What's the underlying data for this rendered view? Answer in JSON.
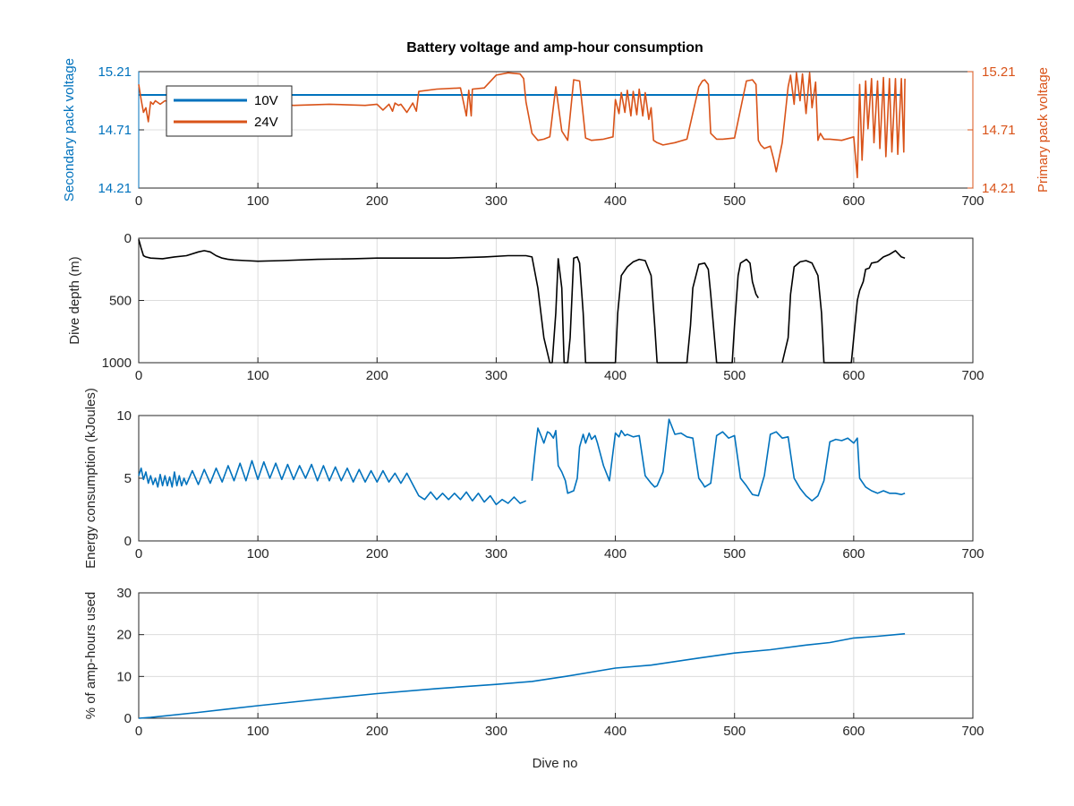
{
  "chart_data": [
    {
      "type": "line",
      "title": "Battery voltage and amp-hour consumption",
      "xlabel": "",
      "ylabel": "Secondary pack voltage",
      "ylabel_right": "Primary pack voltage",
      "xlim": [
        0,
        700
      ],
      "ylim": [
        14.21,
        15.21
      ],
      "xticks": [
        "0",
        "100",
        "200",
        "300",
        "400",
        "500",
        "600",
        "700"
      ],
      "yticks": [
        "14.21",
        "14.71",
        "15.21"
      ],
      "yticks_right": [
        "14.21",
        "14.71",
        "15.21"
      ],
      "grid": true,
      "legend": "top-left",
      "series": [
        {
          "name": "10V",
          "axis": "left",
          "color": "#0072BD",
          "x": [
            0,
            640
          ],
          "y": [
            15.01,
            15.01
          ]
        },
        {
          "name": "24V",
          "axis": "right",
          "color": "#D95319",
          "x": [
            0,
            2,
            4,
            6,
            8,
            10,
            12,
            14,
            18,
            22,
            30,
            50,
            80,
            110,
            130,
            160,
            190,
            200,
            205,
            210,
            213,
            215,
            218,
            220,
            225,
            230,
            233,
            235,
            250,
            270,
            275,
            277,
            279,
            280,
            290,
            300,
            310,
            320,
            323,
            325,
            330,
            335,
            340,
            345,
            350,
            355,
            360,
            365,
            370,
            375,
            380,
            390,
            398,
            400,
            403,
            405,
            408,
            410,
            413,
            415,
            418,
            420,
            423,
            425,
            428,
            430,
            432,
            435,
            440,
            450,
            460,
            470,
            473,
            475,
            478,
            480,
            485,
            490,
            500,
            510,
            515,
            518,
            520,
            522,
            525,
            530,
            533,
            535,
            540,
            545,
            547,
            550,
            552,
            555,
            557,
            560,
            563,
            565,
            568,
            570,
            572,
            575,
            580,
            590,
            600,
            603,
            605,
            607,
            610,
            612,
            615,
            617,
            620,
            622,
            625,
            627,
            630,
            632,
            635,
            637,
            640,
            642,
            643
          ],
          "y": [
            15.1,
            14.97,
            14.86,
            14.9,
            14.78,
            14.95,
            14.93,
            14.96,
            14.93,
            14.96,
            14.94,
            14.95,
            14.93,
            14.94,
            14.92,
            14.93,
            14.92,
            14.93,
            14.88,
            14.93,
            14.87,
            14.94,
            14.92,
            14.93,
            14.86,
            14.94,
            14.87,
            15.04,
            15.06,
            15.07,
            14.83,
            15.05,
            14.83,
            15.06,
            15.07,
            15.18,
            15.2,
            15.19,
            15.15,
            14.95,
            14.68,
            14.62,
            14.63,
            14.65,
            15.08,
            14.7,
            14.62,
            15.14,
            15.13,
            14.64,
            14.62,
            14.63,
            14.65,
            14.97,
            14.85,
            15.03,
            14.86,
            15.05,
            14.83,
            15.04,
            14.84,
            15.06,
            14.83,
            15.03,
            14.8,
            14.9,
            14.62,
            14.6,
            14.58,
            14.6,
            14.63,
            15.08,
            15.13,
            15.14,
            15.1,
            14.68,
            14.63,
            14.63,
            14.64,
            15.13,
            15.14,
            15.1,
            14.62,
            14.58,
            14.55,
            14.57,
            14.45,
            14.35,
            14.6,
            15.08,
            15.18,
            14.93,
            15.2,
            14.96,
            15.19,
            14.85,
            15.2,
            14.9,
            15.12,
            14.62,
            14.68,
            14.63,
            14.63,
            14.62,
            14.65,
            14.3,
            15.1,
            14.45,
            15.13,
            14.72,
            15.15,
            14.6,
            15.13,
            14.55,
            15.16,
            14.48,
            15.15,
            14.52,
            15.15,
            14.5,
            15.15,
            14.52,
            15.15
          ]
        }
      ]
    },
    {
      "type": "line",
      "title": "",
      "xlabel": "",
      "ylabel": "Dive depth (m)",
      "xlim": [
        0,
        700
      ],
      "ylim": [
        1000,
        0
      ],
      "y_reversed": true,
      "xticks": [
        "0",
        "100",
        "200",
        "300",
        "400",
        "500",
        "600",
        "700"
      ],
      "yticks": [
        "0",
        "500",
        "1000"
      ],
      "grid": true,
      "series": [
        {
          "color": "#000000",
          "x": [
            0,
            2,
            4,
            6,
            10,
            20,
            30,
            40,
            50,
            55,
            60,
            65,
            70,
            75,
            80,
            90,
            100,
            120,
            150,
            180,
            200,
            230,
            260,
            290,
            310,
            320,
            325,
            330,
            335,
            340,
            345,
            347,
            350,
            352,
            355,
            357,
            360,
            362,
            365,
            368,
            370,
            373,
            375,
            380,
            390,
            400,
            402,
            405,
            410,
            415,
            420,
            425,
            430,
            433,
            435,
            440,
            450,
            460,
            463,
            465,
            470,
            475,
            478,
            480,
            485,
            490,
            498,
            500,
            503,
            505,
            510,
            513,
            515,
            518,
            520,
            null,
            540,
            545,
            547,
            550,
            555,
            560,
            565,
            570,
            573,
            575,
            580,
            590,
            598,
            600,
            603,
            605,
            608,
            610,
            613,
            615,
            620,
            625,
            630,
            635,
            640,
            643
          ],
          "y": [
            10,
            80,
            140,
            150,
            160,
            165,
            150,
            140,
            110,
            100,
            110,
            140,
            160,
            170,
            175,
            180,
            185,
            180,
            170,
            165,
            160,
            160,
            160,
            150,
            140,
            140,
            140,
            150,
            400,
            800,
            1000,
            1000,
            600,
            165,
            400,
            1000,
            1000,
            800,
            160,
            150,
            200,
            600,
            1000,
            1000,
            1000,
            1000,
            600,
            300,
            230,
            190,
            170,
            180,
            300,
            700,
            1000,
            1000,
            1000,
            1000,
            700,
            400,
            210,
            200,
            250,
            450,
            1000,
            1000,
            1000,
            700,
            300,
            200,
            170,
            200,
            350,
            450,
            480,
            null,
            1000,
            800,
            450,
            230,
            190,
            180,
            200,
            300,
            600,
            1000,
            1000,
            1000,
            1000,
            800,
            500,
            420,
            350,
            250,
            240,
            200,
            190,
            150,
            130,
            100,
            150,
            160
          ]
        }
      ]
    },
    {
      "type": "line",
      "title": "",
      "xlabel": "",
      "ylabel": "Energy consumption (kJoules)",
      "xlim": [
        0,
        700
      ],
      "ylim": [
        0,
        10
      ],
      "xticks": [
        "0",
        "100",
        "200",
        "300",
        "400",
        "500",
        "600",
        "700"
      ],
      "yticks": [
        "0",
        "5",
        "10"
      ],
      "grid": true,
      "series": [
        {
          "color": "#0072BD",
          "x": [
            0,
            2,
            4,
            6,
            8,
            10,
            12,
            14,
            16,
            18,
            20,
            22,
            24,
            26,
            28,
            30,
            32,
            34,
            36,
            38,
            40,
            45,
            50,
            55,
            60,
            65,
            70,
            75,
            80,
            85,
            90,
            95,
            100,
            105,
            110,
            115,
            120,
            125,
            130,
            135,
            140,
            145,
            150,
            155,
            160,
            165,
            170,
            175,
            180,
            185,
            190,
            195,
            200,
            205,
            210,
            215,
            220,
            225,
            230,
            235,
            240,
            245,
            250,
            255,
            260,
            265,
            270,
            275,
            280,
            285,
            290,
            295,
            300,
            305,
            310,
            315,
            320,
            325,
            null,
            330,
            333,
            335,
            338,
            340,
            343,
            345,
            348,
            350,
            352,
            355,
            358,
            360,
            365,
            368,
            370,
            373,
            375,
            378,
            380,
            383,
            385,
            390,
            395,
            400,
            403,
            405,
            408,
            410,
            415,
            420,
            425,
            430,
            433,
            435,
            440,
            445,
            450,
            455,
            460,
            465,
            470,
            473,
            475,
            480,
            485,
            490,
            495,
            500,
            505,
            510,
            515,
            520,
            525,
            530,
            535,
            540,
            545,
            550,
            555,
            560,
            565,
            570,
            575,
            580,
            585,
            590,
            595,
            600,
            603,
            605,
            610,
            615,
            620,
            625,
            630,
            635,
            640,
            643
          ],
          "y": [
            5.2,
            5.8,
            4.9,
            5.5,
            4.6,
            5.2,
            4.5,
            5.0,
            4.3,
            5.3,
            4.4,
            5.2,
            4.4,
            5.1,
            4.3,
            5.5,
            4.4,
            5.2,
            4.4,
            5.0,
            4.5,
            5.6,
            4.5,
            5.7,
            4.6,
            5.8,
            4.7,
            6.0,
            4.8,
            6.2,
            4.8,
            6.4,
            4.9,
            6.3,
            5.0,
            6.2,
            4.9,
            6.1,
            4.9,
            6.0,
            5.0,
            6.1,
            4.8,
            6.0,
            4.8,
            5.9,
            4.8,
            5.8,
            4.7,
            5.7,
            4.7,
            5.6,
            4.7,
            5.6,
            4.7,
            5.4,
            4.6,
            5.4,
            4.5,
            3.6,
            3.3,
            3.9,
            3.3,
            3.8,
            3.3,
            3.8,
            3.3,
            3.9,
            3.2,
            3.8,
            3.1,
            3.6,
            2.9,
            3.3,
            3.0,
            3.5,
            3.0,
            3.2,
            null,
            4.8,
            7.5,
            9.0,
            8.3,
            7.8,
            8.7,
            8.6,
            8.2,
            8.8,
            6.0,
            5.5,
            4.8,
            3.8,
            4.0,
            5.0,
            7.5,
            8.5,
            7.8,
            8.6,
            8.1,
            8.4,
            7.8,
            6.0,
            4.8,
            8.6,
            8.3,
            8.8,
            8.4,
            8.5,
            8.3,
            8.4,
            5.2,
            4.6,
            4.3,
            4.4,
            5.5,
            9.7,
            8.5,
            8.6,
            8.3,
            8.2,
            5.0,
            4.6,
            4.3,
            4.6,
            8.4,
            8.7,
            8.2,
            8.4,
            5.0,
            4.4,
            3.7,
            3.6,
            5.2,
            8.5,
            8.7,
            8.2,
            8.3,
            5.0,
            4.2,
            3.6,
            3.2,
            3.6,
            4.8,
            7.9,
            8.1,
            8.0,
            8.2,
            7.8,
            8.2,
            5.0,
            4.3,
            4.0,
            3.8,
            4.0,
            3.8,
            3.8,
            3.7,
            3.8
          ]
        }
      ]
    },
    {
      "type": "line",
      "title": "",
      "xlabel": "Dive no",
      "ylabel": "% of amp-hours used",
      "xlim": [
        0,
        700
      ],
      "ylim": [
        0,
        30
      ],
      "xticks": [
        "0",
        "100",
        "200",
        "300",
        "400",
        "500",
        "600",
        "700"
      ],
      "yticks": [
        "0",
        "10",
        "20",
        "30"
      ],
      "grid": true,
      "series": [
        {
          "color": "#0072BD",
          "x": [
            0,
            10,
            50,
            100,
            150,
            200,
            250,
            300,
            330,
            360,
            400,
            430,
            470,
            500,
            530,
            560,
            580,
            600,
            620,
            643
          ],
          "y": [
            0,
            0.2,
            1.4,
            3.0,
            4.5,
            5.9,
            7.1,
            8.1,
            8.8,
            10.1,
            12.0,
            12.7,
            14.4,
            15.6,
            16.4,
            17.5,
            18.1,
            19.2,
            19.6,
            20.2
          ]
        }
      ]
    }
  ]
}
